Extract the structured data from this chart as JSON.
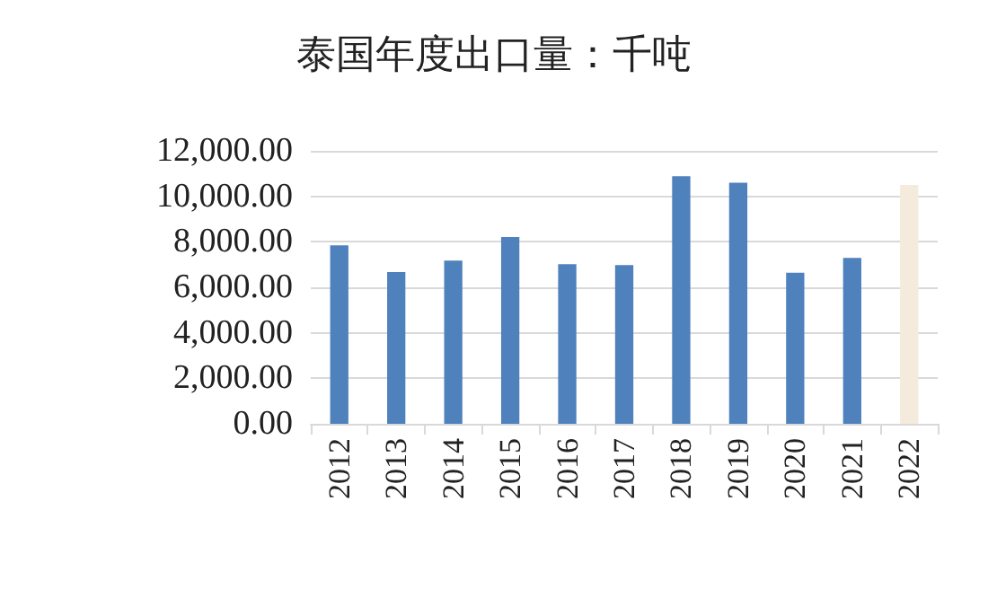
{
  "chart_data": {
    "type": "bar",
    "title": "泰国年度出口量：千吨",
    "categories": [
      "2012",
      "2013",
      "2014",
      "2015",
      "2016",
      "2017",
      "2018",
      "2019",
      "2020",
      "2021",
      "2022"
    ],
    "values": [
      7850,
      6670,
      7170,
      8210,
      7020,
      6980,
      10880,
      10600,
      6640,
      7290,
      10500
    ],
    "colors": [
      "#4f81bd",
      "#4f81bd",
      "#4f81bd",
      "#4f81bd",
      "#4f81bd",
      "#4f81bd",
      "#4f81bd",
      "#4f81bd",
      "#4f81bd",
      "#4f81bd",
      "#f5ebdc"
    ],
    "ylim": [
      0,
      12000
    ],
    "yticks": [
      {
        "value": 0,
        "label": "0.00"
      },
      {
        "value": 2000,
        "label": "2,000.00"
      },
      {
        "value": 4000,
        "label": "4,000.00"
      },
      {
        "value": 6000,
        "label": "6,000.00"
      },
      {
        "value": 8000,
        "label": "8,000.00"
      },
      {
        "value": 10000,
        "label": "10,000.00"
      },
      {
        "value": 12000,
        "label": "12,000.00"
      }
    ],
    "grid": true
  }
}
